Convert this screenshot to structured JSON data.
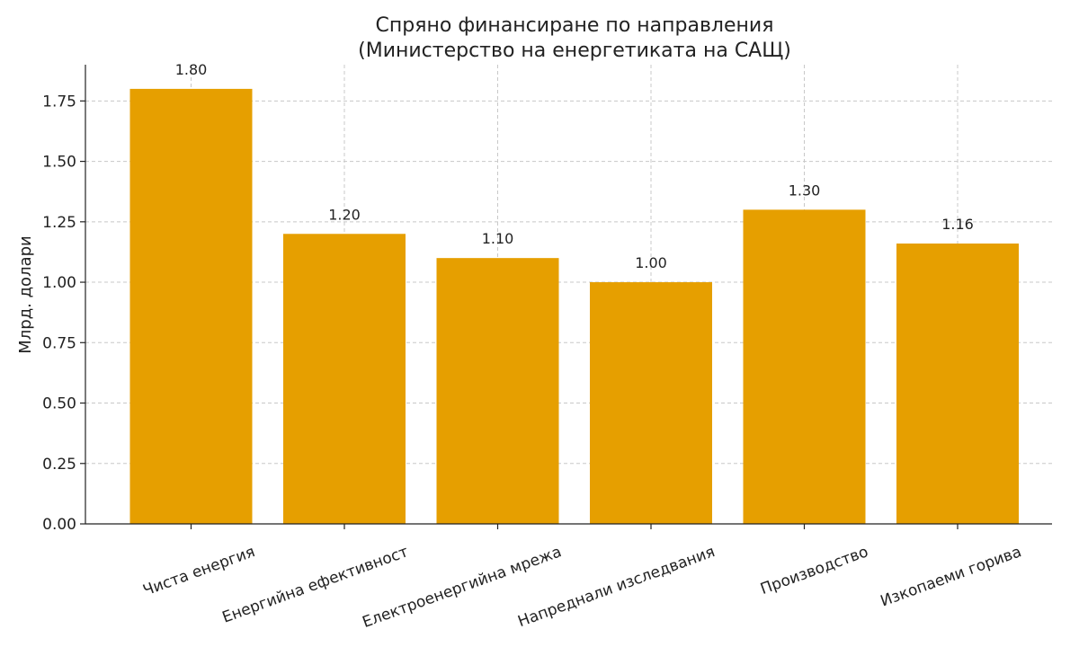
{
  "chart_data": {
    "type": "bar",
    "title": "Спряно финансиране по направления\n(Министерство на енергетиката на САЩ)",
    "title_lines": [
      "Спряно финансиране по направления",
      "(Министерство на енергетиката на САЩ)"
    ],
    "ylabel": "Млрд. долари",
    "xlabel": "",
    "categories": [
      "Чиста енергия",
      "Енергийна ефективност",
      "Електроенергийна мрежа",
      "Напреднали изследвания",
      "Производство",
      "Изкопаеми горива"
    ],
    "values": [
      1.8,
      1.2,
      1.1,
      1.0,
      1.3,
      1.16
    ],
    "value_labels": [
      "1.80",
      "1.20",
      "1.10",
      "1.00",
      "1.30",
      "1.16"
    ],
    "ylim": [
      0,
      1.9
    ],
    "yticks": [
      0.0,
      0.25,
      0.5,
      0.75,
      1.0,
      1.25,
      1.5,
      1.75
    ],
    "ytick_labels": [
      "0.00",
      "0.25",
      "0.50",
      "0.75",
      "1.00",
      "1.25",
      "1.50",
      "1.75"
    ],
    "bar_color": "#E69F00",
    "grid": true,
    "legend": "none"
  }
}
